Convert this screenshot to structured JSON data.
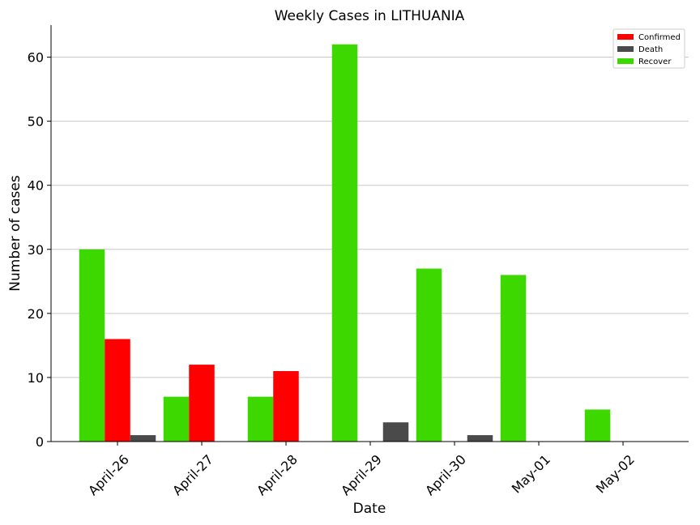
{
  "chart_data": {
    "type": "bar",
    "title": "Weekly Cases in LITHUANIA",
    "xlabel": "Date",
    "ylabel": "Number of cases",
    "categories": [
      "April-26",
      "April-27",
      "April-28",
      "April-29",
      "April-30",
      "May-01",
      "May-02"
    ],
    "series": [
      {
        "name": "Recover",
        "color": "#3dd800",
        "values": [
          30,
          7,
          7,
          62,
          27,
          26,
          5
        ]
      },
      {
        "name": "Confirmed",
        "color": "#ff0000",
        "values": [
          16,
          12,
          11,
          0,
          0,
          0,
          0
        ]
      },
      {
        "name": "Death",
        "color": "#4a4a4a",
        "values": [
          1,
          0,
          0,
          3,
          1,
          0,
          0
        ]
      }
    ],
    "legend_order": [
      "Confirmed",
      "Death",
      "Recover"
    ],
    "ylim": [
      0,
      65
    ],
    "yticks": [
      0,
      10,
      20,
      30,
      40,
      50,
      60
    ],
    "grid": "y",
    "legend_position": "top-right"
  }
}
